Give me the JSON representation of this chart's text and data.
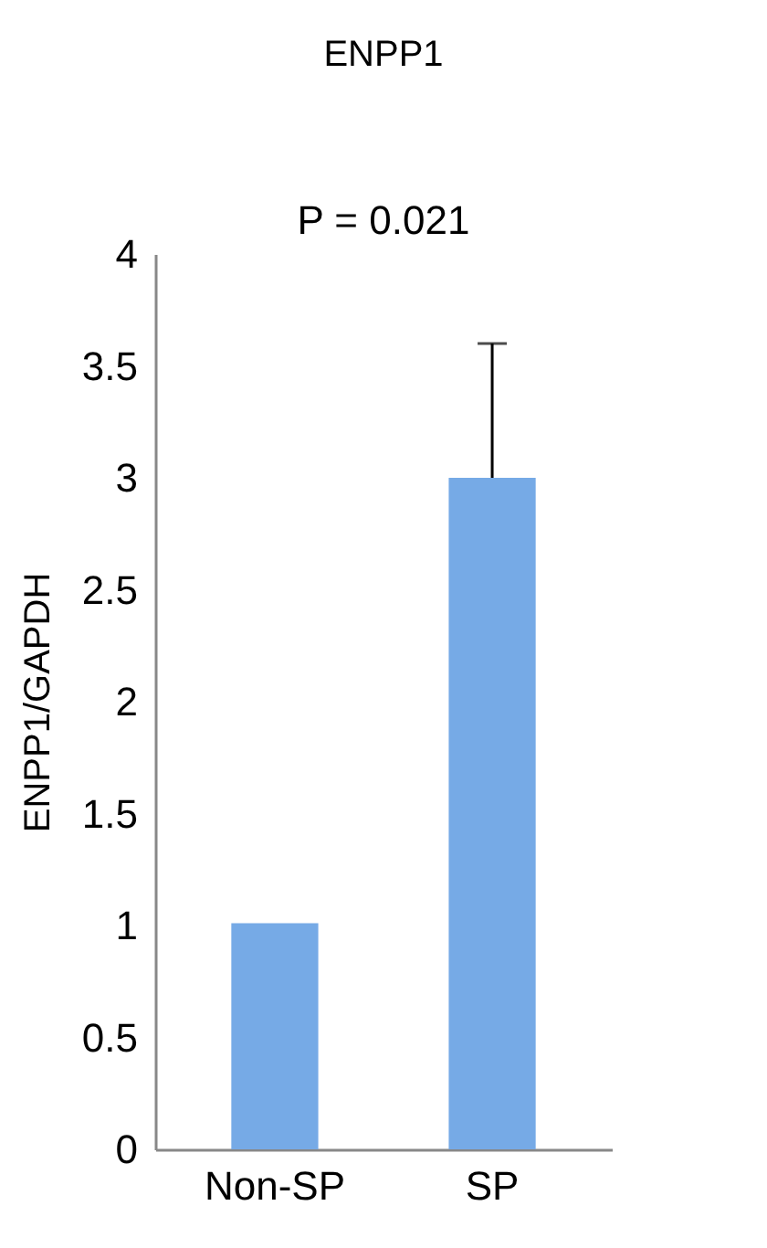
{
  "chart_data": {
    "type": "bar",
    "title": "ENPP1",
    "ylabel": "ENPP1/GAPDH",
    "categories": [
      "Non-SP",
      "SP"
    ],
    "values": [
      1.01,
      3.0
    ],
    "color": "#76aae6",
    "errors": [
      null,
      [
        3.0,
        3.6
      ]
    ],
    "ylim": [
      0,
      4
    ],
    "yticks": [
      0,
      0.5,
      1,
      1.5,
      2,
      2.5,
      3,
      3.5,
      4
    ],
    "grid": false,
    "annotations": [
      "P = 0.021"
    ]
  }
}
